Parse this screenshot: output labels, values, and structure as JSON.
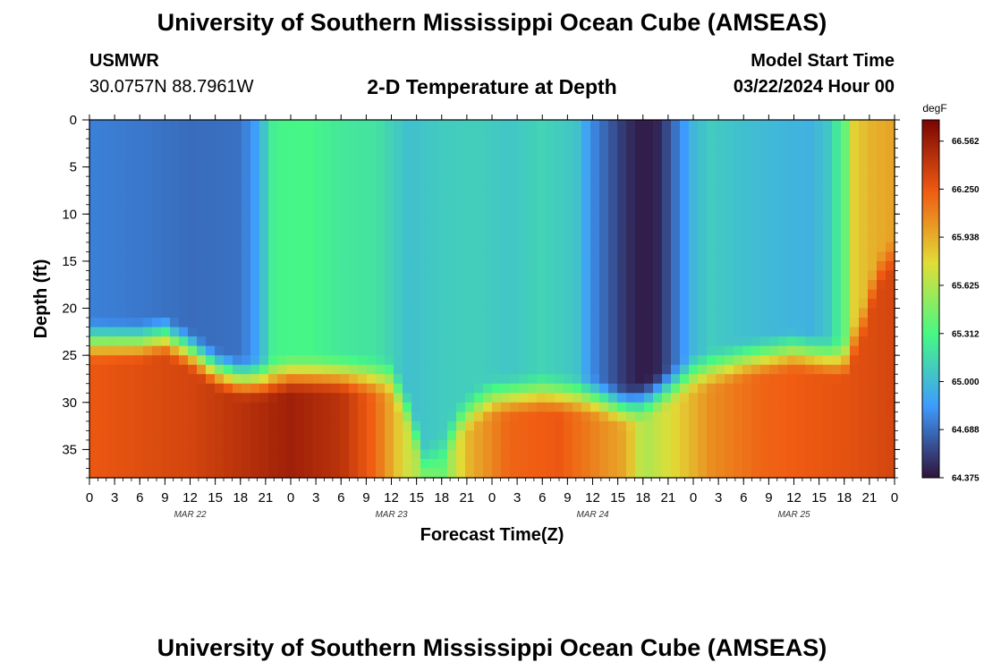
{
  "header": {
    "title": "University of Southern Mississippi Ocean Cube (AMSEAS)",
    "station_id": "USMWR",
    "coordinates": "30.0757N  88.7961W",
    "plot_title": "2-D Temperature at Depth",
    "model_start_label": "Model Start Time",
    "model_start_value": "03/22/2024 Hour 00"
  },
  "footer": {
    "title": "University of Southern Mississippi Ocean Cube (AMSEAS)"
  },
  "colors": {
    "palette_stops": [
      "#30123b",
      "#3e9bfe",
      "#46f884",
      "#e1dd37",
      "#f05b12",
      "#7a0403"
    ]
  },
  "chart_data": {
    "type": "heatmap",
    "xlabel": "Forecast Time(Z)",
    "ylabel": "Depth (ft)",
    "x_range_hours": [
      0,
      96
    ],
    "x_tick_labels": [
      "0",
      "3",
      "6",
      "9",
      "12",
      "15",
      "18",
      "21",
      "0",
      "3",
      "6",
      "9",
      "12",
      "15",
      "18",
      "21",
      "0",
      "3",
      "6",
      "9",
      "12",
      "15",
      "18",
      "21",
      "0",
      "3",
      "6",
      "9",
      "12",
      "15",
      "18",
      "21",
      "0"
    ],
    "date_labels": [
      {
        "label": "MAR 22",
        "hour": 12
      },
      {
        "label": "MAR 23",
        "hour": 36
      },
      {
        "label": "MAR 24",
        "hour": 60
      },
      {
        "label": "MAR 25",
        "hour": 84
      }
    ],
    "ylim": [
      0,
      38
    ],
    "y_inverted": true,
    "y_ticks": [
      0,
      5,
      10,
      15,
      20,
      25,
      30,
      35
    ],
    "y_tick_labels": [
      "0",
      "5",
      "10",
      "15",
      "20",
      "25",
      "30",
      "35"
    ],
    "colorbar": {
      "unit": "degF",
      "range": [
        64.375,
        66.7
      ],
      "tick_values": [
        64.375,
        64.688,
        65.0,
        65.312,
        65.625,
        65.938,
        66.25,
        66.562
      ],
      "tick_labels": [
        "64.375",
        "64.688",
        "65.000",
        "65.312",
        "65.625",
        "65.938",
        "66.250",
        "66.562"
      ]
    },
    "surface_profile": {
      "hours": [
        0,
        6,
        12,
        18,
        20,
        22,
        26,
        30,
        34,
        38,
        42,
        46,
        50,
        54,
        58,
        60,
        62,
        64,
        66,
        68,
        70,
        72,
        74,
        78,
        82,
        86,
        88,
        90,
        91,
        93,
        96
      ],
      "values": [
        64.75,
        64.72,
        64.68,
        64.7,
        64.88,
        65.28,
        65.3,
        65.22,
        65.2,
        65.02,
        65.08,
        65.1,
        65.05,
        65.12,
        65.05,
        64.78,
        64.62,
        64.48,
        64.4,
        64.45,
        64.72,
        64.98,
        65.08,
        65.02,
        64.98,
        64.95,
        65.05,
        65.35,
        65.8,
        65.92,
        65.98
      ]
    },
    "thermocline_depth_ft": {
      "hours": [
        0,
        6,
        9,
        12,
        15,
        18,
        21,
        24,
        30,
        36,
        38,
        40,
        42,
        44,
        46,
        48,
        54,
        60,
        62,
        64,
        66,
        68,
        70,
        72,
        78,
        84,
        90,
        92,
        94,
        96
      ],
      "values": [
        23.5,
        23.5,
        23.0,
        24.5,
        26.5,
        27.5,
        27.5,
        27.0,
        27.0,
        27.5,
        31.0,
        36.5,
        35.5,
        32.0,
        30.5,
        29.5,
        29.0,
        29.5,
        30.0,
        30.5,
        30.0,
        29.0,
        28.0,
        27.0,
        25.5,
        24.5,
        25.5,
        22.0,
        16.0,
        14.0
      ]
    },
    "bottom_profile": {
      "hours": [
        0,
        12,
        24,
        30,
        34,
        38,
        42,
        45,
        50,
        56,
        60,
        64,
        66,
        70,
        74,
        80,
        86,
        92,
        96
      ],
      "values": [
        66.25,
        66.35,
        66.55,
        66.45,
        66.2,
        65.7,
        65.4,
        65.9,
        66.2,
        66.25,
        66.1,
        65.95,
        65.6,
        65.8,
        66.05,
        66.2,
        66.25,
        66.3,
        66.35
      ]
    }
  }
}
